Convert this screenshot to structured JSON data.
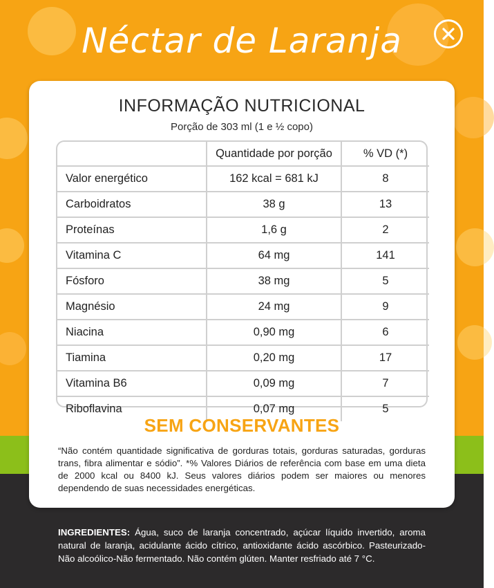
{
  "header": {
    "title": "Néctar de Laranja",
    "close_icon": "close-x-icon"
  },
  "colors": {
    "background_orange": "#f7a414",
    "stripe_green": "#8cbf1a",
    "footer_dark": "#2c2a2b",
    "accent_orange": "#f7a414"
  },
  "card": {
    "title": "INFORMAÇÃO NUTRICIONAL",
    "subtitle": "Porção de 303 ml (1 e ½ copo)"
  },
  "table": {
    "headers": [
      "",
      "Quantidade por porção",
      "% VD (*)"
    ],
    "rows": [
      {
        "name": "Valor energético",
        "qty": "162 kcal = 681 kJ",
        "vd": "8"
      },
      {
        "name": "Carboidratos",
        "qty": "38 g",
        "vd": "13"
      },
      {
        "name": "Proteínas",
        "qty": "1,6 g",
        "vd": "2"
      },
      {
        "name": "Vitamina C",
        "qty": "64 mg",
        "vd": "141"
      },
      {
        "name": "Fósforo",
        "qty": "38 mg",
        "vd": "5"
      },
      {
        "name": "Magnésio",
        "qty": "24 mg",
        "vd": "9"
      },
      {
        "name": "Niacina",
        "qty": "0,90 mg",
        "vd": "6"
      },
      {
        "name": "Tiamina",
        "qty": "0,20 mg",
        "vd": "17"
      },
      {
        "name": "Vitamina B6",
        "qty": "0,09 mg",
        "vd": "7"
      },
      {
        "name": "Riboflavina",
        "qty": "0,07 mg",
        "vd": "5"
      }
    ]
  },
  "claim": "SEM CONSERVANTES",
  "footnote": "“Não contém quantidade significativa de gorduras totais, gorduras saturadas, gorduras trans, fibra alimentar e sódio”. *% Valores Diários de referência com base em uma dieta de 2000 kcal ou 8400 kJ. Seus valores diários podem ser maiores ou menores dependendo de suas necessidades energéticas.",
  "ingredients": {
    "label": "INGREDIENTES:",
    "text": " Água, suco de laranja concentrado, açúcar líquido invertido, aroma natural de laranja, acidulante ácido cítrico, antioxidante ácido ascórbico. Pasteurizado-Não alcoólico-Não fermentado. Não contém glúten. Manter resfriado até 7 °C."
  }
}
